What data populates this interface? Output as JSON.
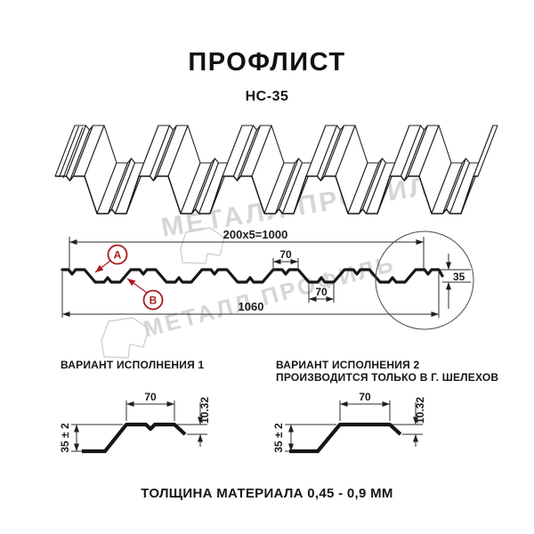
{
  "title": "ПРОФЛИСТ",
  "subtitle": "НС-35",
  "watermark": {
    "brand_text": "МЕТАЛЛ ПРОФИЛЬ",
    "color": "#d6d6d6"
  },
  "colors": {
    "line": "#161616",
    "accent_red": "#a81b1b",
    "watermark_gray": "#d6d6d6"
  },
  "section": {
    "dim_pitch_total": "200x5=1000",
    "dim_crest_width": "70",
    "dim_valley_width": "70",
    "dim_overall_width": "1060",
    "dim_height": "35",
    "marker_a": "A",
    "marker_b": "B"
  },
  "variant1": {
    "title": "ВАРИАНТ ИСПОЛНЕНИЯ 1",
    "dim_top_width": "70",
    "dim_lip_height": "10.32",
    "dim_height": "35 ± 2"
  },
  "variant2": {
    "title_line1": "ВАРИАНТ ИСПОЛНЕНИЯ 2",
    "title_line2": "ПРОИЗВОДИТСЯ ТОЛЬКО В Г. ШЕЛЕХОВ",
    "dim_top_width": "70",
    "dim_lip_height": "10.32",
    "dim_height": "35 ± 2"
  },
  "footer": {
    "text": "ТОЛЩИНА МАТЕРИАЛА 0,45 - 0,9 ММ"
  }
}
